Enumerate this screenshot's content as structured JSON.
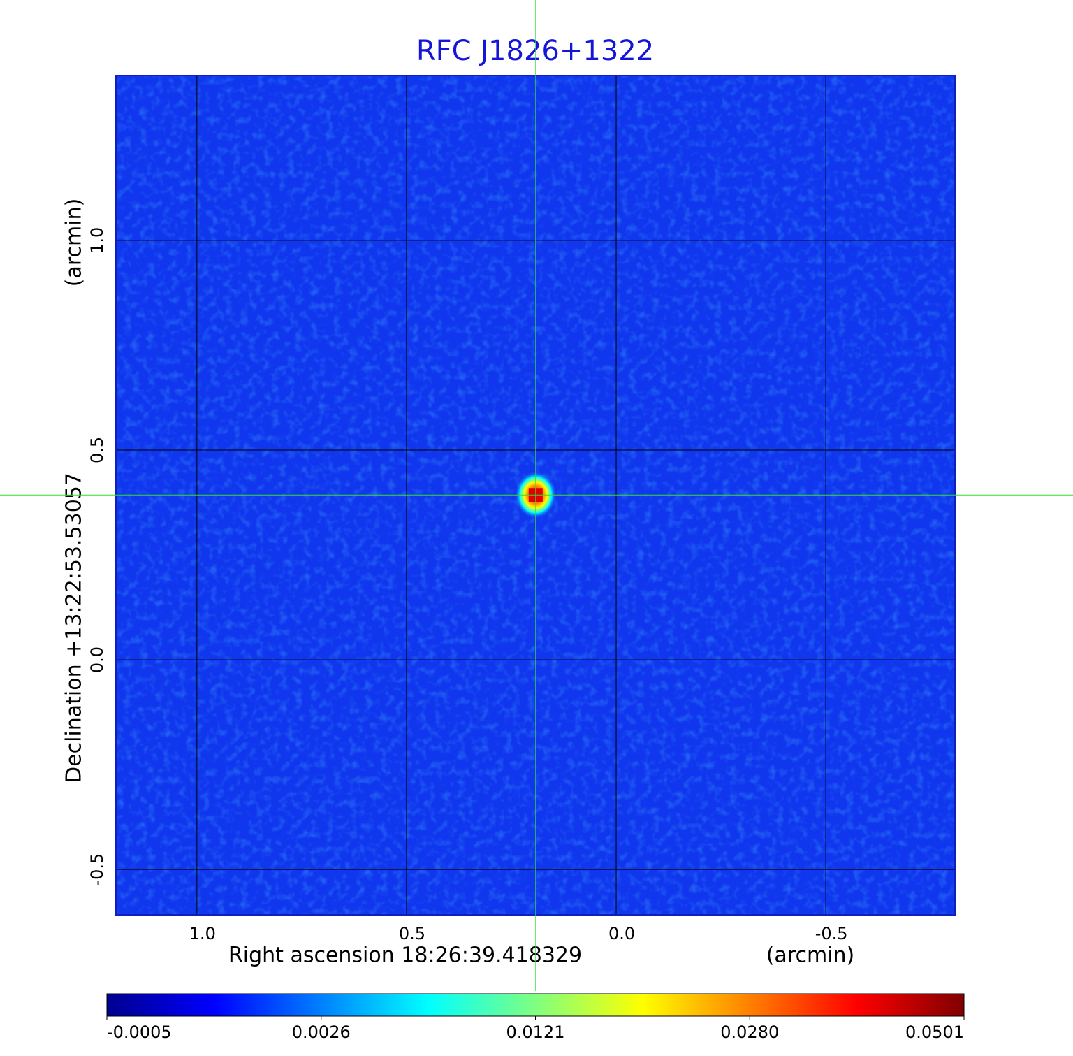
{
  "chart_data": {
    "type": "image",
    "title": "RFC J1826+1322",
    "x_label": "Right ascension  18:26:39.418329",
    "x_unit": "(arcmin)",
    "y_label": "Declination  +13:22:53.53057",
    "y_unit": "(arcmin)",
    "xlim": [
      1.193,
      -0.808
    ],
    "ylim": [
      -0.608,
      1.393
    ],
    "xticks": [
      {
        "value": 1,
        "label": "1.0"
      },
      0.5,
      {
        "value": 0,
        "label": "0.0"
      },
      -0.5
    ],
    "yticks": [
      -0.5,
      {
        "value": 0,
        "label": "0.0"
      },
      0.5,
      {
        "value": 1,
        "label": "1.0"
      }
    ],
    "grid": true,
    "crosshair": [
      0.192,
      0.393
    ],
    "crosshair_color": "#33dd33",
    "colorbar_ticks": [
      -0.0005,
      0.0026,
      0.0121,
      {
        "value": 0.028,
        "label": "0.0280"
      },
      0.0501
    ],
    "colormap": [
      "#00008f",
      "#0000ff",
      "#0080ff",
      "#00ffff",
      "#80ff80",
      "#ffff00",
      "#ff8000",
      "#ff0000",
      "#800000"
    ]
  }
}
